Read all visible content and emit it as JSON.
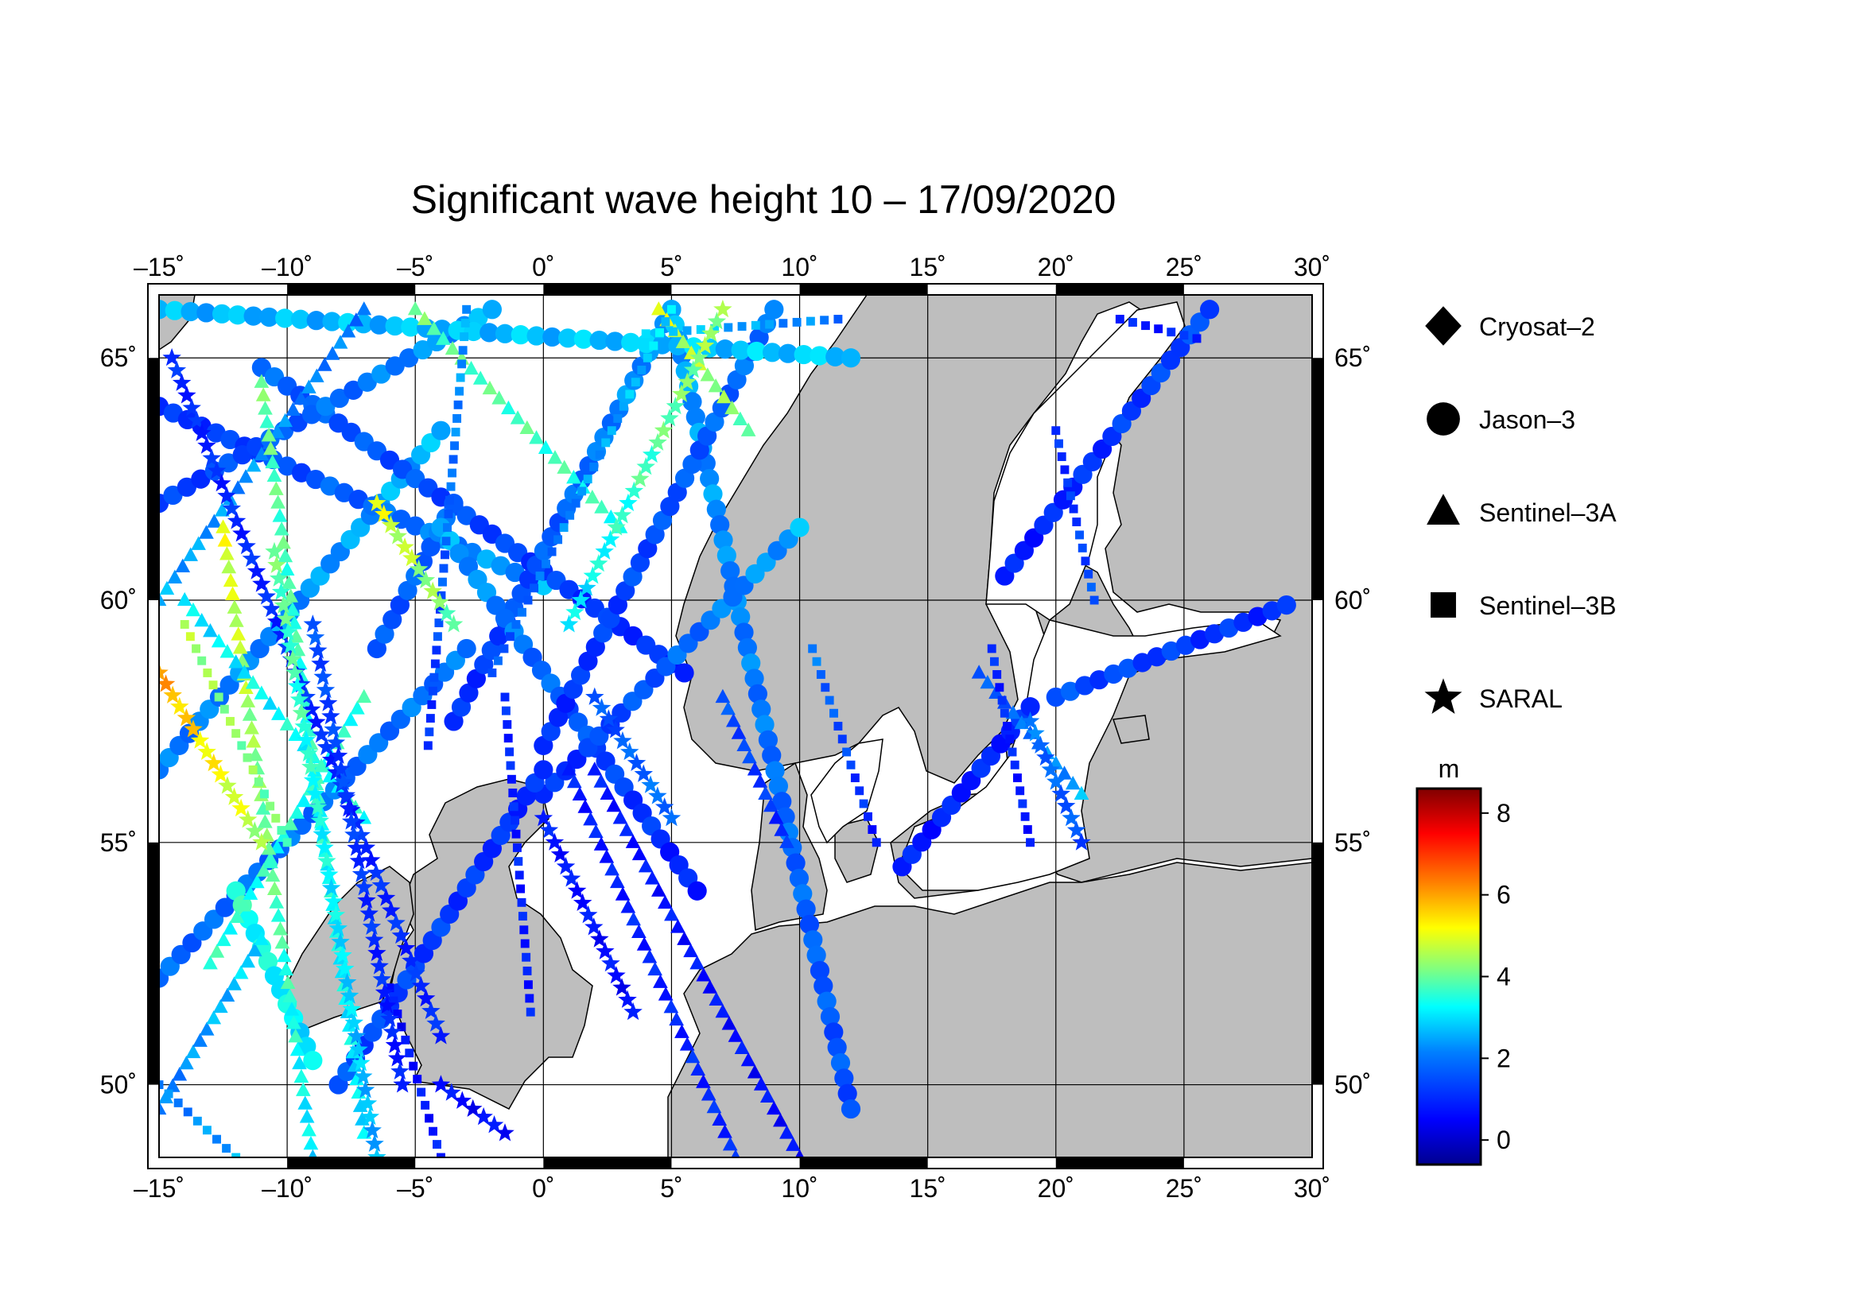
{
  "map": {
    "title": "Significant wave height 10 – 17/09/2020",
    "lon_range": [
      -15,
      30
    ],
    "lat_range": [
      48.5,
      66.3
    ],
    "lon_ticks": [
      -15,
      -10,
      -5,
      0,
      5,
      10,
      15,
      20,
      25,
      30
    ],
    "lat_ticks": [
      50,
      55,
      60,
      65
    ],
    "lon_tick_labels": [
      "–15˚",
      "–10˚",
      "–5˚",
      "0˚",
      "5˚",
      "10˚",
      "15˚",
      "20˚",
      "25˚",
      "30˚"
    ],
    "lat_tick_labels": [
      "50˚",
      "55˚",
      "60˚",
      "65˚"
    ],
    "grid": true,
    "land_color": "#bebebe",
    "sea_color": "#ffffff"
  },
  "legend": {
    "items": [
      {
        "label": "Cryosat–2",
        "symbol": "diamond"
      },
      {
        "label": "Jason–3",
        "symbol": "circle"
      },
      {
        "label": "Sentinel–3A",
        "symbol": "triangle"
      },
      {
        "label": "Sentinel–3B",
        "symbol": "square"
      },
      {
        "label": "SARAL",
        "symbol": "star"
      }
    ]
  },
  "colorbar": {
    "unit": "m",
    "min": -0.6,
    "max": 8.6,
    "ticks": [
      0,
      2,
      4,
      6,
      8
    ],
    "tick_labels": [
      "0",
      "2",
      "4",
      "6",
      "8"
    ],
    "colormap": [
      "#00008f",
      "#0000ff",
      "#0080ff",
      "#00ffff",
      "#80ff80",
      "#ffff00",
      "#ff8000",
      "#ff0000",
      "#800000"
    ]
  },
  "chart_data": {
    "type": "scatter",
    "title": "Significant wave height 10 – 17/09/2020",
    "x_axis": "longitude (degrees)",
    "y_axis": "latitude (degrees)",
    "value_unit": "m",
    "series": [
      {
        "name": "Jason–3",
        "symbol": "circle",
        "tracks": [
          {
            "from": [
              -15,
              56.5
            ],
            "to": [
              -4,
              63.5
            ],
            "v_from": 2.0,
            "v_to": 2.6
          },
          {
            "from": [
              -15,
              52.2
            ],
            "to": [
              -3,
              59.0
            ],
            "v_from": 1.8,
            "v_to": 2.0
          },
          {
            "from": [
              -15,
              64.0
            ],
            "to": [
              0,
              60.3
            ],
            "v_from": 1.0,
            "v_to": 2.5
          },
          {
            "from": [
              -11,
              64.8
            ],
            "to": [
              5.5,
              58.5
            ],
            "v_from": 1.8,
            "v_to": 1.0
          },
          {
            "from": [
              -15,
              62.0
            ],
            "to": [
              -2,
              66.0
            ],
            "v_from": 1.2,
            "v_to": 2.5
          },
          {
            "from": [
              -3.5,
              57.5
            ],
            "to": [
              5,
              66.0
            ],
            "v_from": 1.0,
            "v_to": 2.5
          },
          {
            "from": [
              5,
              66.0
            ],
            "to": [
              12,
              49.5
            ],
            "v_from": 2.5,
            "v_to": 1.5
          },
          {
            "from": [
              -6.5,
              59.0
            ],
            "to": [
              -3.5,
              62.0
            ],
            "v_from": 1.5,
            "v_to": 2.0
          },
          {
            "from": [
              -4,
              61.5
            ],
            "to": [
              6,
              54.0
            ],
            "v_from": 2.5,
            "v_to": 0.8
          },
          {
            "from": [
              0,
              56.0
            ],
            "to": [
              10,
              61.5
            ],
            "v_from": 1.0,
            "v_to": 2.5
          },
          {
            "from": [
              0,
              57.0
            ],
            "to": [
              9,
              66.0
            ],
            "v_from": 1.0,
            "v_to": 2.0
          },
          {
            "from": [
              14,
              54.5
            ],
            "to": [
              19,
              57.8
            ],
            "v_from": 0.8,
            "v_to": 1.0
          },
          {
            "from": [
              18,
              60.5
            ],
            "to": [
              26,
              66.0
            ],
            "v_from": 0.8,
            "v_to": 1.5
          },
          {
            "from": [
              20,
              58.0
            ],
            "to": [
              29,
              59.9
            ],
            "v_from": 1.5,
            "v_to": 1.0
          },
          {
            "from": [
              -8,
              50.0
            ],
            "to": [
              0,
              56.5
            ],
            "v_from": 1.5,
            "v_to": 1.0
          },
          {
            "from": [
              -15,
              66.0
            ],
            "to": [
              12,
              65.0
            ],
            "v_from": 2.6,
            "v_to": 2.8
          },
          {
            "from": [
              -12,
              54.0
            ],
            "to": [
              -9,
              50.5
            ],
            "v_from": 3.5,
            "v_to": 3.0
          }
        ]
      },
      {
        "name": "Sentinel–3A",
        "symbol": "triangle",
        "tracks": [
          {
            "from": [
              -15,
              60.0
            ],
            "to": [
              -7,
              66.0
            ],
            "v_from": 2.5,
            "v_to": 2.0
          },
          {
            "from": [
              -13,
              52.5
            ],
            "to": [
              -7,
              58.0
            ],
            "v_from": 3.5,
            "v_to": 3.5
          },
          {
            "from": [
              -12.5,
              61.5
            ],
            "to": [
              -9,
              48.5
            ],
            "v_from": 5.0,
            "v_to": 3.0
          },
          {
            "from": [
              -11,
              64.5
            ],
            "to": [
              -7,
              49.0
            ],
            "v_from": 4.0,
            "v_to": 3.0
          },
          {
            "from": [
              -5,
              66.0
            ],
            "to": [
              3,
              61.5
            ],
            "v_from": 4.0,
            "v_to": 3.5
          },
          {
            "from": [
              1,
              56.5
            ],
            "to": [
              7.5,
              48.5
            ],
            "v_from": 0.8,
            "v_to": 1.0
          },
          {
            "from": [
              2,
              56.5
            ],
            "to": [
              10,
              48.5
            ],
            "v_from": 0.8,
            "v_to": 0.6
          },
          {
            "from": [
              7,
              58.0
            ],
            "to": [
              9.5,
              55.0
            ],
            "v_from": 1.5,
            "v_to": 1.0
          },
          {
            "from": [
              -14,
              60.0
            ],
            "to": [
              -7,
              55.5
            ],
            "v_from": 3.0,
            "v_to": 3.5
          },
          {
            "from": [
              -15,
              49.5
            ],
            "to": [
              -11,
              53.0
            ],
            "v_from": 2.0,
            "v_to": 3.0
          },
          {
            "from": [
              17,
              58.5
            ],
            "to": [
              21,
              56.0
            ],
            "v_from": 1.5,
            "v_to": 2.5
          },
          {
            "from": [
              4.5,
              66.0
            ],
            "to": [
              8,
              63.5
            ],
            "v_from": 5.0,
            "v_to": 4.0
          }
        ]
      },
      {
        "name": "Sentinel–3B",
        "symbol": "square",
        "tracks": [
          {
            "from": [
              -14,
              59.5
            ],
            "to": [
              -10,
              55.0
            ],
            "v_from": 4.5,
            "v_to": 4.0
          },
          {
            "from": [
              -4.5,
              57.0
            ],
            "to": [
              -3,
              66.0
            ],
            "v_from": 1.0,
            "v_to": 2.5
          },
          {
            "from": [
              -1.5,
              58.0
            ],
            "to": [
              -0.5,
              51.5
            ],
            "v_from": 1.0,
            "v_to": 0.8
          },
          {
            "from": [
              -2,
              58.5
            ],
            "to": [
              5,
              66.0
            ],
            "v_from": 1.5,
            "v_to": 3.0
          },
          {
            "from": [
              -6,
              52.0
            ],
            "to": [
              -4,
              48.5
            ],
            "v_from": 0.6,
            "v_to": 0.8
          },
          {
            "from": [
              10.5,
              59.0
            ],
            "to": [
              13,
              55.0
            ],
            "v_from": 2.0,
            "v_to": 0.8
          },
          {
            "from": [
              17.5,
              59.0
            ],
            "to": [
              19,
              55.0
            ],
            "v_from": 1.0,
            "v_to": 0.8
          },
          {
            "from": [
              20,
              63.5
            ],
            "to": [
              21.5,
              60.0
            ],
            "v_from": 1.0,
            "v_to": 1.5
          },
          {
            "from": [
              22.5,
              65.8
            ],
            "to": [
              25.5,
              65.4
            ],
            "v_from": 0.8,
            "v_to": 1.0
          },
          {
            "from": [
              -15,
              50.0
            ],
            "to": [
              -12,
              48.5
            ],
            "v_from": 2.0,
            "v_to": 2.5
          },
          {
            "from": [
              4,
              65.5
            ],
            "to": [
              11.5,
              65.8
            ],
            "v_from": 3.0,
            "v_to": 2.0
          }
        ]
      },
      {
        "name": "SARAL",
        "symbol": "star",
        "tracks": [
          {
            "from": [
              -14.5,
              65.0
            ],
            "to": [
              -4,
              51.0
            ],
            "v_from": 1.0,
            "v_to": 1.0
          },
          {
            "from": [
              -6.5,
              62.0
            ],
            "to": [
              -3.5,
              59.5
            ],
            "v_from": 5.0,
            "v_to": 4.0
          },
          {
            "from": [
              -10.5,
              61.0
            ],
            "to": [
              -6.5,
              48.5
            ],
            "v_from": 4.0,
            "v_to": 2.5
          },
          {
            "from": [
              -9,
              59.5
            ],
            "to": [
              -5.5,
              50.0
            ],
            "v_from": 1.5,
            "v_to": 0.8
          },
          {
            "from": [
              1,
              59.5
            ],
            "to": [
              7,
              66.0
            ],
            "v_from": 3.0,
            "v_to": 4.5
          },
          {
            "from": [
              0,
              55.5
            ],
            "to": [
              3.5,
              51.5
            ],
            "v_from": 0.8,
            "v_to": 0.6
          },
          {
            "from": [
              2,
              58.0
            ],
            "to": [
              5,
              55.5
            ],
            "v_from": 1.5,
            "v_to": 2.0
          },
          {
            "from": [
              -4,
              50.0
            ],
            "to": [
              -1.5,
              49.0
            ],
            "v_from": 0.6,
            "v_to": 0.6
          },
          {
            "from": [
              19,
              57.5
            ],
            "to": [
              21,
              55.0
            ],
            "v_from": 2.0,
            "v_to": 1.5
          },
          {
            "from": [
              -15,
              58.5
            ],
            "to": [
              -11,
              55.0
            ],
            "v_from": 6.0,
            "v_to": 4.5
          }
        ]
      }
    ]
  }
}
